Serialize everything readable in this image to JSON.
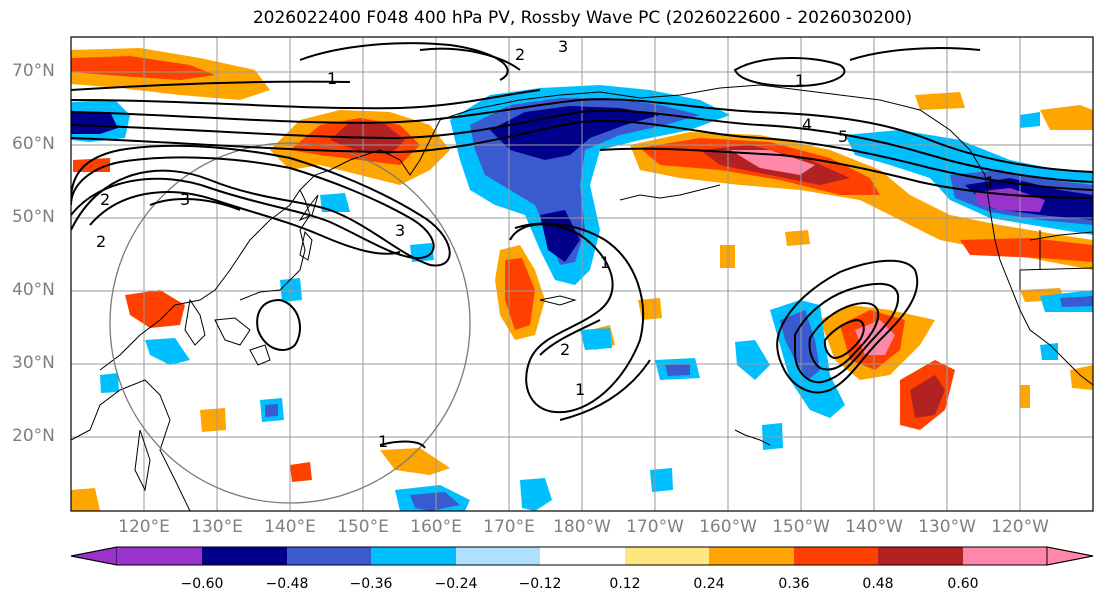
{
  "title": "2026022400 F048 400 hPa PV, Rossby Wave PC (2026022600 - 2026030200)",
  "latitude_labels": [
    "70°N",
    "60°N",
    "50°N",
    "40°N",
    "30°N",
    "20°N"
  ],
  "longitude_labels": [
    "120°E",
    "130°E",
    "140°E",
    "150°E",
    "160°E",
    "170°E",
    "180°W",
    "170°W",
    "160°W",
    "150°W",
    "140°W",
    "130°W",
    "120°W"
  ],
  "contour_labels": [
    "1",
    "2",
    "3",
    "2",
    "1",
    "2",
    "3",
    "4",
    "5",
    "1",
    "1",
    "1",
    "2",
    "3",
    "1"
  ],
  "colorbar": {
    "tick_labels": [
      "−0.60",
      "−0.48",
      "−0.36",
      "−0.24",
      "−0.12",
      "0.12",
      "0.24",
      "0.36",
      "0.48",
      "0.60"
    ],
    "colors": [
      "#9933cc",
      "#00008b",
      "#3a5bd0",
      "#00bfff",
      "#b0e0ff",
      "#ffffff",
      "#ffe680",
      "#ffa500",
      "#ff4000",
      "#b22222",
      "#ff88aa"
    ]
  },
  "map": {
    "projection": "PlateCarree",
    "lon_range": [
      110,
      250
    ],
    "lat_range": [
      10,
      75
    ],
    "grid": true,
    "fill_variable": "Rossby Wave PC",
    "contour_variable": "400 hPa PV"
  }
}
